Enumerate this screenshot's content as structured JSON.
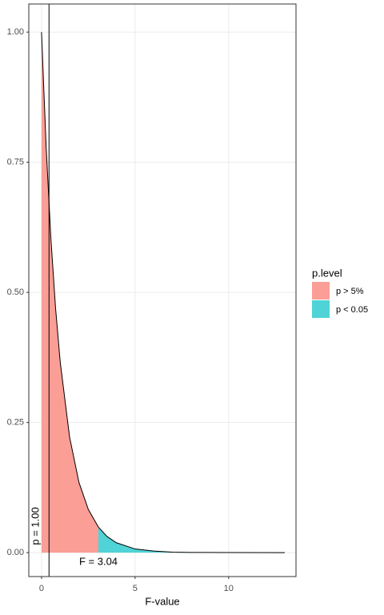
{
  "chart_data": {
    "type": "area",
    "xlabel": "F-value",
    "xlim": [
      -0.68,
      13.6
    ],
    "ylim": [
      -0.046,
      1.054
    ],
    "xticks": [
      0,
      5,
      10
    ],
    "yticks": [
      {
        "value": 0,
        "label": "0.00"
      },
      {
        "value": 0.25,
        "label": "0.25"
      },
      {
        "value": 0.5,
        "label": "0.50"
      },
      {
        "value": 0.75,
        "label": "0.75"
      },
      {
        "value": 1,
        "label": "1.00"
      }
    ],
    "grid": true,
    "legend_title": "p.level",
    "legend": "right",
    "series": [
      {
        "name": "p > 5%",
        "color": "#fa9e96",
        "x": [
          0,
          0.25,
          0.5,
          0.75,
          1,
          1.5,
          2,
          2.5,
          3.04
        ],
        "values": [
          1,
          0.777,
          0.604,
          0.47,
          0.366,
          0.222,
          0.135,
          0.083,
          0.049
        ]
      },
      {
        "name": "p < 0.05",
        "color": "#4fd3d6",
        "x": [
          3.04,
          3.5,
          4,
          5,
          6,
          7,
          8,
          10,
          13
        ],
        "values": [
          0.049,
          0.031,
          0.019,
          0.007,
          0.003,
          0.001,
          0.0004,
          0.0001,
          0
        ]
      }
    ],
    "vline": 0.4,
    "annotations": [
      "p = 1.00",
      "F = 3.04"
    ]
  }
}
